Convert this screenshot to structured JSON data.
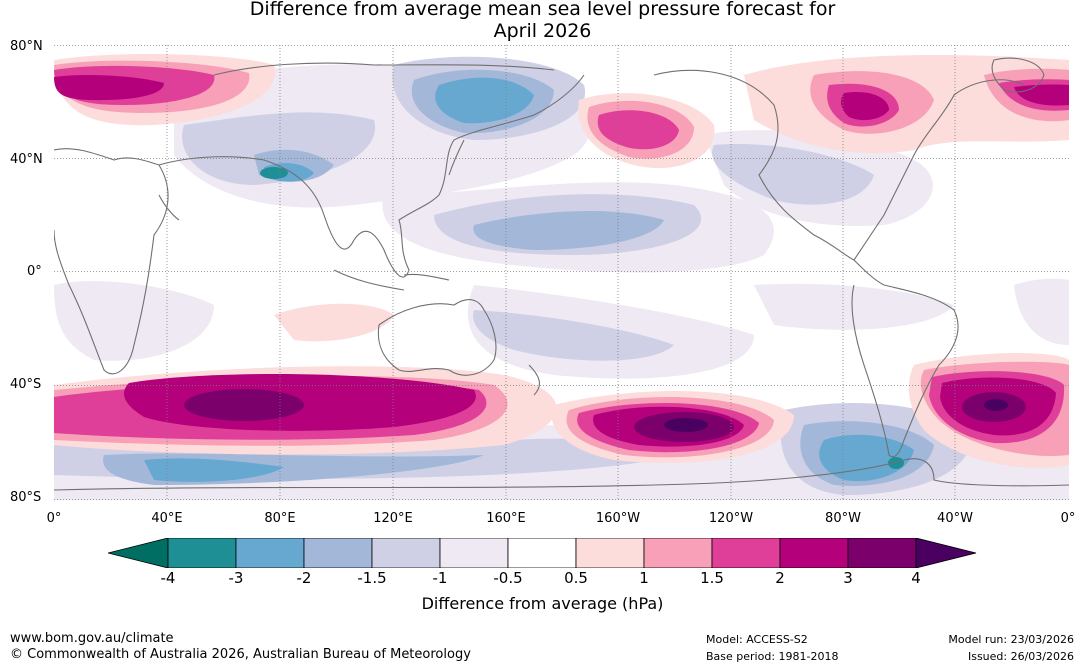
{
  "title_line1": "Difference from average mean sea level pressure forecast for",
  "title_line2": "April 2026",
  "lat_labels": [
    "80°N",
    "40°N",
    "0°",
    "40°S",
    "80°S"
  ],
  "lon_labels": [
    "0°",
    "40°E",
    "80°E",
    "120°E",
    "160°E",
    "160°W",
    "120°W",
    "80°W",
    "40°W",
    "0°"
  ],
  "colorbar": {
    "title": "Difference from average (hPa)",
    "tick_labels": [
      "-4",
      "-3",
      "-2",
      "-1.5",
      "-1",
      "-0.5",
      "0.5",
      "1",
      "1.5",
      "2",
      "3",
      "4"
    ],
    "colors": [
      "#006e63",
      "#1f8f96",
      "#66a8d0",
      "#a3b8d8",
      "#cfd0e6",
      "#efe9f3",
      "#ffffff",
      "#fddcdc",
      "#f7a0b8",
      "#df3f99",
      "#b5007c",
      "#7c006c",
      "#4a0061"
    ]
  },
  "footer": {
    "url": "www.bom.gov.au/climate",
    "copyright": "© Commonwealth of Australia 2026, Australian Bureau of Meteorology",
    "model": "Model: ACCESS-S2",
    "base_period": "Base period: 1981-2018",
    "model_run": "Model run: 23/03/2026",
    "issued": "Issued: 26/03/2026"
  }
}
